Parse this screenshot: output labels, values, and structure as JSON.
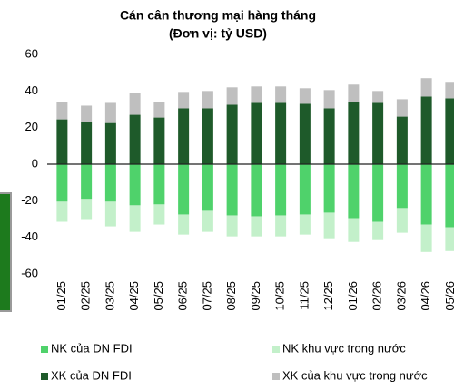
{
  "chart_data": {
    "type": "stacked_bar",
    "title": "Cán cân thương mại hàng tháng",
    "subtitle": "(Đơn vị: tỷ USD)",
    "categories": [
      "01/25",
      "02/25",
      "03/25",
      "04/25",
      "05/25",
      "06/25",
      "07/25",
      "08/25",
      "09/25",
      "10/25",
      "11/25",
      "12/25",
      "01/26",
      "02/26",
      "03/26",
      "04/26",
      "05/26"
    ],
    "series": [
      {
        "name": "NK của DN FDI",
        "color": "#4fd26b",
        "values": [
          -20.5,
          -19,
          -20.5,
          -22.5,
          -22,
          -27.5,
          -25.5,
          -28,
          -28.5,
          -28,
          -27.5,
          -26.5,
          -29.5,
          -31.5,
          -24,
          -33,
          -34.5
        ]
      },
      {
        "name": "NK khu vực trong nước",
        "color": "#c3f0ca",
        "values": [
          -11,
          -11.5,
          -13.5,
          -14.5,
          -11,
          -11,
          -11.5,
          -11.5,
          -11,
          -11.5,
          -11,
          -14,
          -13,
          -10,
          -13.5,
          -15,
          -13
        ]
      },
      {
        "name": "XK của DN FDI",
        "color": "#1e5a2a",
        "values": [
          24.5,
          23,
          22.5,
          27,
          25.5,
          30.5,
          30.5,
          32.5,
          33.5,
          33.5,
          33,
          30.5,
          34,
          33.5,
          26,
          37,
          36
        ]
      },
      {
        "name": "XK của khu vực trong nước",
        "color": "#bfbfbf",
        "values": [
          9.5,
          9,
          11,
          12,
          8.5,
          9,
          9.5,
          9.5,
          9,
          9,
          8.5,
          10,
          9.5,
          6.5,
          9.5,
          10,
          9
        ]
      }
    ],
    "ylim": [
      -60,
      60
    ],
    "yticks": [
      -60,
      -40,
      -20,
      0,
      20,
      40,
      60
    ]
  }
}
